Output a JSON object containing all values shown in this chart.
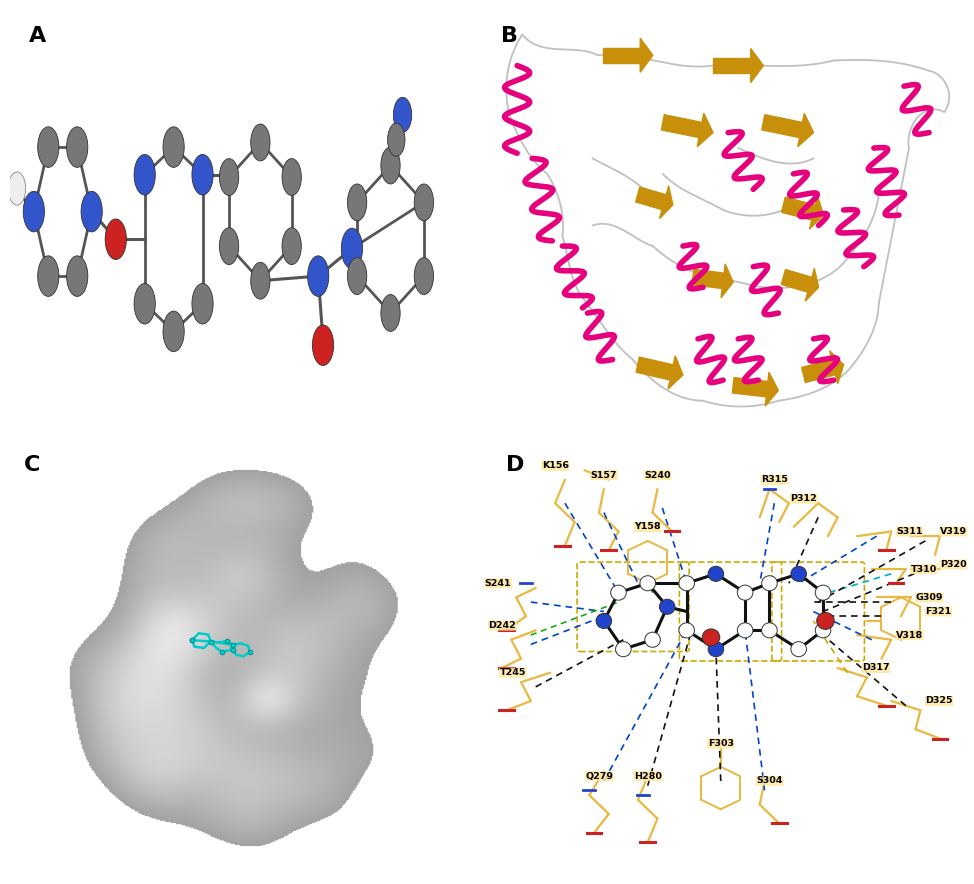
{
  "panel_labels": [
    "A",
    "B",
    "C",
    "D"
  ],
  "panel_label_fontsize": 16,
  "panel_label_fontweight": "bold",
  "background_color": "#ffffff",
  "bond_colors": {
    "hydrogen_blue": "#0000dd",
    "hydrogen_green": "#00aa00",
    "hydrophobic_black": "#111111",
    "pi_yellow": "#ccaa00",
    "cyan_dash": "#00aacc",
    "unfavorable_red": "#cc2200"
  },
  "residues_D": [
    "K156",
    "S157",
    "S240",
    "Y158",
    "S241",
    "D242",
    "T245",
    "Q279",
    "H280",
    "F303",
    "S304",
    "D317",
    "V318",
    "G309",
    "T310",
    "S311",
    "P312",
    "R315",
    "V319",
    "P320",
    "F321",
    "D325"
  ]
}
